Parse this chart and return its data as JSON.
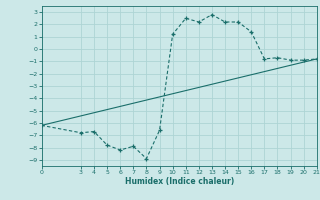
{
  "xlabel": "Humidex (Indice chaleur)",
  "ylabel": "",
  "bg_color": "#cce8e8",
  "grid_color": "#aed4d4",
  "line_color": "#1a6e6a",
  "xlim": [
    0,
    21
  ],
  "ylim": [
    -9.5,
    3.5
  ],
  "xticks": [
    0,
    3,
    4,
    5,
    6,
    7,
    8,
    9,
    10,
    11,
    12,
    13,
    14,
    15,
    16,
    17,
    18,
    19,
    20,
    21
  ],
  "yticks": [
    3,
    2,
    1,
    0,
    -1,
    -2,
    -3,
    -4,
    -5,
    -6,
    -7,
    -8,
    -9
  ],
  "curve_x": [
    0,
    3,
    4,
    5,
    6,
    7,
    8,
    9,
    10,
    11,
    12,
    13,
    14,
    15,
    16,
    17,
    18,
    19,
    20,
    21
  ],
  "curve_y": [
    -6.2,
    -6.8,
    -6.7,
    -7.8,
    -8.2,
    -7.9,
    -8.9,
    -6.6,
    1.2,
    2.5,
    2.2,
    2.8,
    2.2,
    2.2,
    1.4,
    -0.8,
    -0.7,
    -0.9,
    -0.9,
    -0.8
  ],
  "trend_x": [
    0,
    21
  ],
  "trend_y": [
    -6.2,
    -0.8
  ]
}
